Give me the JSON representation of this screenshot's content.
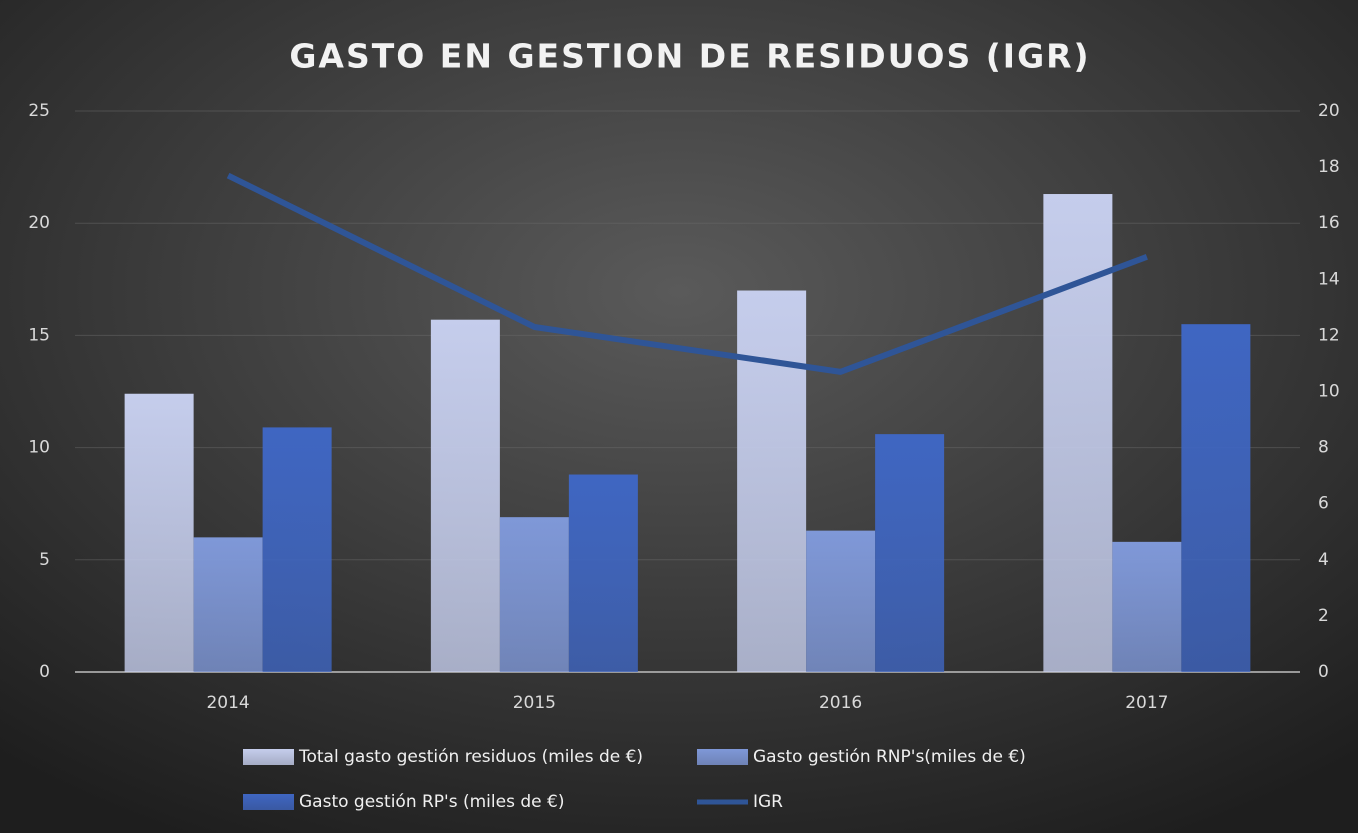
{
  "chart_data": {
    "type": "bar",
    "title": "GASTO EN GESTION DE RESIDUOS (IGR)",
    "categories": [
      "2014",
      "2015",
      "2016",
      "2017"
    ],
    "series": [
      {
        "name": "Total gasto gestión residuos (miles de €)",
        "color": "#c5cdec",
        "type": "bar",
        "values": [
          12.4,
          15.7,
          17.0,
          21.3
        ]
      },
      {
        "name": "Gasto gestión RNP's(miles de €)",
        "color": "#7f98d8",
        "type": "bar",
        "values": [
          6.0,
          6.9,
          6.3,
          5.8
        ]
      },
      {
        "name": "Gasto gestión RP's (miles de €)",
        "color": "#3f66c2",
        "type": "bar",
        "values": [
          10.9,
          8.8,
          10.6,
          15.5
        ]
      },
      {
        "name": "IGR",
        "color": "#2f5597",
        "type": "line",
        "axis": "y2",
        "values": [
          17.7,
          12.3,
          10.7,
          14.8
        ]
      }
    ],
    "ylim": [
      0,
      25
    ],
    "yticks": [
      0,
      5,
      10,
      15,
      20,
      25
    ],
    "y2lim": [
      0,
      20
    ],
    "y2ticks": [
      0,
      2,
      4,
      6,
      8,
      10,
      12,
      14,
      16,
      18,
      20
    ],
    "grid": true
  }
}
